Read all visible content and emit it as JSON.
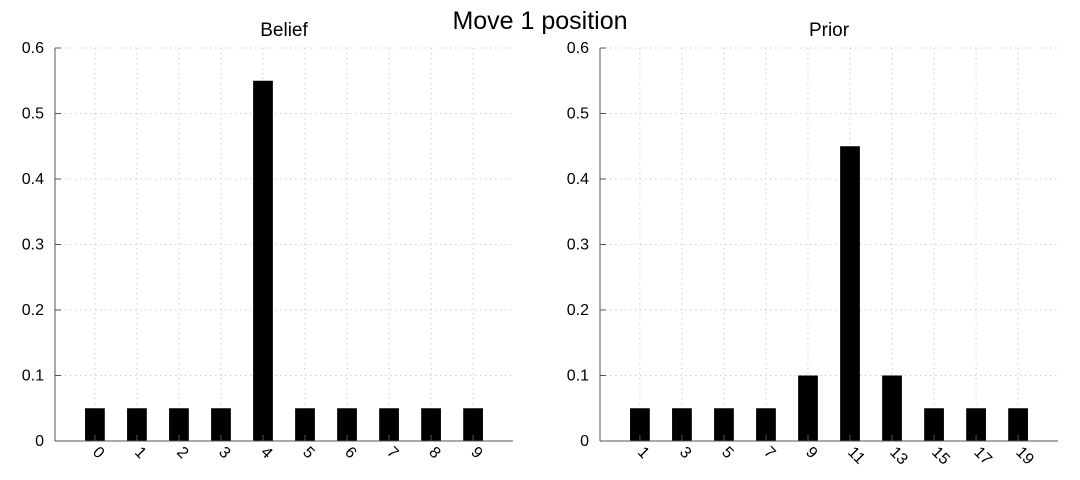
{
  "figure": {
    "suptitle": "Move 1 position"
  },
  "chart_data": [
    {
      "type": "bar",
      "title": "Belief",
      "xlabel": "",
      "ylabel": "",
      "categories": [
        "0",
        "1",
        "2",
        "3",
        "4",
        "5",
        "6",
        "7",
        "8",
        "9"
      ],
      "values": [
        0.05,
        0.05,
        0.05,
        0.05,
        0.55,
        0.05,
        0.05,
        0.05,
        0.05,
        0.05
      ],
      "ylim": [
        0,
        0.6
      ],
      "yticks": [
        0,
        0.1,
        0.2,
        0.3,
        0.4,
        0.5,
        0.6
      ],
      "ytick_labels": [
        "0",
        "0.1",
        "0.2",
        "0.3",
        "0.4",
        "0.5",
        "0.6"
      ],
      "grid": true,
      "bar_color": "#000000"
    },
    {
      "type": "bar",
      "title": "Prior",
      "xlabel": "",
      "ylabel": "",
      "categories": [
        "1",
        "3",
        "5",
        "7",
        "9",
        "11",
        "13",
        "15",
        "17",
        "19"
      ],
      "values": [
        0.05,
        0.05,
        0.05,
        0.05,
        0.1,
        0.45,
        0.1,
        0.05,
        0.05,
        0.05
      ],
      "ylim": [
        0,
        0.6
      ],
      "yticks": [
        0,
        0.1,
        0.2,
        0.3,
        0.4,
        0.5,
        0.6
      ],
      "ytick_labels": [
        "0",
        "0.1",
        "0.2",
        "0.3",
        "0.4",
        "0.5",
        "0.6"
      ],
      "grid": true,
      "bar_color": "#000000"
    }
  ]
}
